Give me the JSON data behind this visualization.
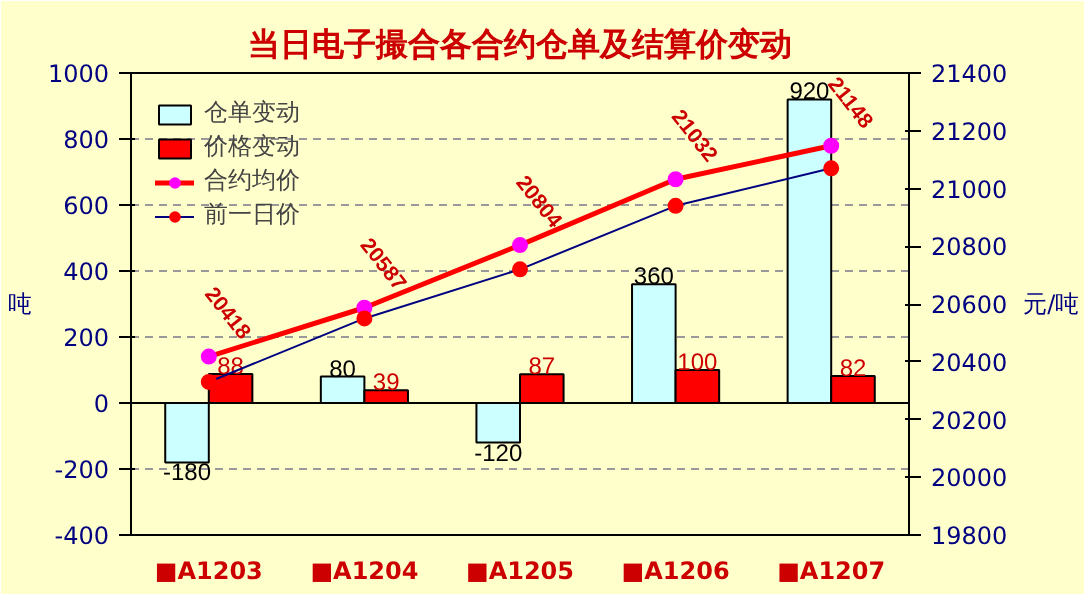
{
  "chart_data": {
    "type": "bar",
    "title": "当日电子撮合各合约仓单及结算价变动",
    "ylabel": "吨",
    "y2label": "元/吨",
    "categories": [
      "■A1203",
      "■A1204",
      "■A1205",
      "■A1206",
      "■A1207"
    ],
    "series": [
      {
        "name": "仓单变动",
        "color": "#ccffff",
        "values": [
          -180,
          80,
          -120,
          360,
          920
        ],
        "value_labels": [
          "-180",
          "80",
          "-120",
          "360",
          "920"
        ]
      },
      {
        "name": "价格变动",
        "color": "#ff0000",
        "values": [
          88,
          39,
          87,
          100,
          82
        ],
        "value_labels": [
          "88",
          "39",
          "87",
          "100",
          "82"
        ]
      },
      {
        "name": "合约均价",
        "type": "line",
        "axis": "y2",
        "color": "#ff0000",
        "marker": "circle",
        "values": [
          20418,
          20587,
          20804,
          21032,
          21148
        ],
        "value_labels": [
          "20418",
          "20587",
          "20804",
          "21032",
          "21148"
        ]
      },
      {
        "name": "前一日价",
        "type": "line",
        "axis": "y2",
        "color": "#000080",
        "marker": "circle",
        "values": [
          20330,
          20550,
          20720,
          20940,
          21070
        ]
      }
    ],
    "ylim": [
      -400,
      1000
    ],
    "yticks": [
      -400,
      -200,
      0,
      200,
      400,
      600,
      800,
      1000
    ],
    "y2lim": [
      19800,
      21400
    ],
    "y2ticks": [
      19800,
      20000,
      20200,
      20400,
      20600,
      20800,
      21000,
      21200,
      21400
    ],
    "grid": "y",
    "legend": "top left"
  }
}
